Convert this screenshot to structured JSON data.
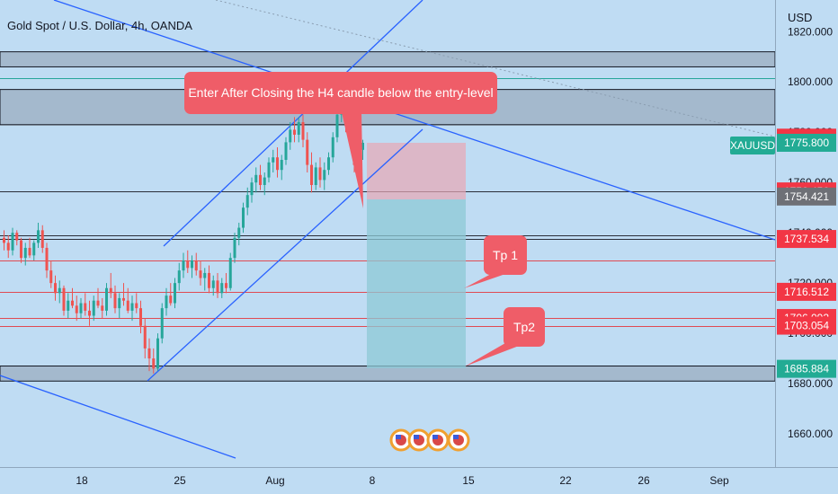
{
  "header": {
    "title": "Gold Spot / U.S. Dollar, 4h, OANDA",
    "currency": "USD",
    "symbol": "XAUUSD"
  },
  "annotations": {
    "entry_note": "Enter After Closing the H4 candle below the entry-level",
    "tp1": "Tp 1",
    "tp2": "Tp2"
  },
  "colors": {
    "background": "#bfdcf3",
    "candle_up": "#26a69a",
    "candle_down": "#ef5350",
    "callout": "#ef5d68",
    "price_red": "#f23645",
    "price_green": "#22ab94",
    "price_gray": "#6e7076",
    "trend_line": "#2962ff"
  },
  "price_axis": {
    "ticks": [
      {
        "value": 1820,
        "label": "1820.000"
      },
      {
        "value": 1800,
        "label": "1800.000"
      },
      {
        "value": 1780,
        "label": "1780.000"
      },
      {
        "value": 1760,
        "label": "1760.000"
      },
      {
        "value": 1740,
        "label": "1740.000"
      },
      {
        "value": 1720,
        "label": "1720.000"
      },
      {
        "value": 1700,
        "label": "1700.000"
      },
      {
        "value": 1680,
        "label": "1680.000"
      },
      {
        "value": 1660,
        "label": "1660.000"
      }
    ],
    "price_labels": [
      {
        "value": 1777.838,
        "label": "1777.838",
        "color": "red"
      },
      {
        "value": 1775.8,
        "label": "1775.800",
        "color": "green"
      },
      {
        "value": 1756.456,
        "label": "1756.456",
        "color": "red"
      },
      {
        "value": 1754.421,
        "label": "1754.421",
        "color": "gray"
      },
      {
        "value": 1737.534,
        "label": "1737.534",
        "color": "red"
      },
      {
        "value": 1716.512,
        "label": "1716.512",
        "color": "red"
      },
      {
        "value": 1706.092,
        "label": "1706.092",
        "color": "red"
      },
      {
        "value": 1703.054,
        "label": "1703.054",
        "color": "red"
      },
      {
        "value": 1685.884,
        "label": "1685.884",
        "color": "green"
      }
    ]
  },
  "time_axis": {
    "labels": [
      "18",
      "25",
      "Aug",
      "8",
      "15",
      "22",
      "26",
      "Sep"
    ]
  },
  "zones": [
    {
      "top": 1812,
      "bottom": 1806
    },
    {
      "top": 1797,
      "bottom": 1783
    },
    {
      "top": 1687,
      "bottom": 1681
    }
  ],
  "horizontal_levels": [
    {
      "value": 1783,
      "style": "gray"
    },
    {
      "value": 1756.456,
      "style": "dark"
    },
    {
      "value": 1739,
      "style": "dark"
    },
    {
      "value": 1737.5,
      "style": "dark"
    },
    {
      "value": 1729,
      "style": "red"
    },
    {
      "value": 1716.512,
      "style": "red"
    },
    {
      "value": 1706.092,
      "style": "red"
    },
    {
      "value": 1703.054,
      "style": "red"
    },
    {
      "value": 1801.5,
      "style": "teal"
    }
  ],
  "chart_data": {
    "type": "candlestick",
    "ylim": [
      1646.8,
      1832.6
    ],
    "candles": [
      [
        1738,
        1741,
        1733,
        1736
      ],
      [
        1736,
        1739,
        1730,
        1733
      ],
      [
        1733,
        1742,
        1731,
        1740
      ],
      [
        1740,
        1741,
        1735,
        1737
      ],
      [
        1737,
        1738,
        1728,
        1730
      ],
      [
        1730,
        1736,
        1727,
        1734
      ],
      [
        1734,
        1738,
        1730,
        1731
      ],
      [
        1731,
        1737,
        1729,
        1736
      ],
      [
        1736,
        1744,
        1734,
        1741
      ],
      [
        1741,
        1743,
        1732,
        1734
      ],
      [
        1734,
        1736,
        1722,
        1725
      ],
      [
        1725,
        1729,
        1718,
        1720
      ],
      [
        1720,
        1723,
        1713,
        1716
      ],
      [
        1716,
        1721,
        1712,
        1718
      ],
      [
        1718,
        1719,
        1707,
        1709
      ],
      [
        1709,
        1716,
        1706,
        1713
      ],
      [
        1713,
        1718,
        1710,
        1711
      ],
      [
        1711,
        1715,
        1705,
        1708
      ],
      [
        1708,
        1714,
        1706,
        1712
      ],
      [
        1712,
        1716,
        1707,
        1709
      ],
      [
        1709,
        1713,
        1703,
        1707
      ],
      [
        1707,
        1715,
        1705,
        1713
      ],
      [
        1713,
        1718,
        1710,
        1711
      ],
      [
        1711,
        1714,
        1706,
        1709
      ],
      [
        1709,
        1720,
        1707,
        1718
      ],
      [
        1718,
        1724,
        1714,
        1716
      ],
      [
        1716,
        1719,
        1708,
        1710
      ],
      [
        1710,
        1716,
        1706,
        1714
      ],
      [
        1714,
        1720,
        1711,
        1713
      ],
      [
        1713,
        1718,
        1708,
        1709
      ],
      [
        1709,
        1715,
        1705,
        1712
      ],
      [
        1712,
        1716,
        1708,
        1710
      ],
      [
        1710,
        1713,
        1700,
        1703
      ],
      [
        1703,
        1706,
        1690,
        1694
      ],
      [
        1694,
        1698,
        1685,
        1690
      ],
      [
        1690,
        1694,
        1684,
        1686
      ],
      [
        1686,
        1700,
        1685,
        1698
      ],
      [
        1698,
        1712,
        1696,
        1710
      ],
      [
        1710,
        1718,
        1707,
        1715
      ],
      [
        1715,
        1720,
        1711,
        1712
      ],
      [
        1712,
        1722,
        1710,
        1720
      ],
      [
        1720,
        1728,
        1717,
        1725
      ],
      [
        1725,
        1732,
        1722,
        1729
      ],
      [
        1729,
        1733,
        1724,
        1726
      ],
      [
        1726,
        1731,
        1722,
        1729
      ],
      [
        1729,
        1732,
        1723,
        1725
      ],
      [
        1725,
        1729,
        1719,
        1722
      ],
      [
        1722,
        1726,
        1717,
        1724
      ],
      [
        1724,
        1727,
        1716,
        1718
      ],
      [
        1718,
        1723,
        1715,
        1721
      ],
      [
        1721,
        1724,
        1714,
        1716
      ],
      [
        1716,
        1722,
        1714,
        1720
      ],
      [
        1720,
        1724,
        1716,
        1718
      ],
      [
        1718,
        1732,
        1717,
        1730
      ],
      [
        1730,
        1740,
        1728,
        1738
      ],
      [
        1738,
        1744,
        1735,
        1742
      ],
      [
        1742,
        1752,
        1740,
        1750
      ],
      [
        1750,
        1758,
        1747,
        1755
      ],
      [
        1755,
        1762,
        1752,
        1760
      ],
      [
        1760,
        1766,
        1756,
        1763
      ],
      [
        1763,
        1767,
        1757,
        1759
      ],
      [
        1759,
        1764,
        1755,
        1762
      ],
      [
        1762,
        1770,
        1760,
        1768
      ],
      [
        1768,
        1773,
        1764,
        1770
      ],
      [
        1770,
        1774,
        1762,
        1765
      ],
      [
        1765,
        1771,
        1761,
        1769
      ],
      [
        1769,
        1778,
        1767,
        1776
      ],
      [
        1776,
        1784,
        1773,
        1781
      ],
      [
        1781,
        1786,
        1776,
        1779
      ],
      [
        1779,
        1786,
        1776,
        1784
      ],
      [
        1784,
        1787,
        1774,
        1777
      ],
      [
        1777,
        1780,
        1764,
        1767
      ],
      [
        1767,
        1772,
        1756,
        1759
      ],
      [
        1759,
        1768,
        1757,
        1766
      ],
      [
        1766,
        1770,
        1758,
        1761
      ],
      [
        1761,
        1768,
        1757,
        1765
      ],
      [
        1765,
        1772,
        1763,
        1770
      ],
      [
        1770,
        1780,
        1768,
        1778
      ],
      [
        1778,
        1790,
        1776,
        1787
      ],
      [
        1787,
        1797,
        1784,
        1793
      ],
      [
        1793,
        1794,
        1780,
        1783
      ],
      [
        1783,
        1789,
        1779,
        1786
      ],
      [
        1786,
        1789,
        1764,
        1767
      ],
      [
        1767,
        1775,
        1765,
        1773
      ],
      [
        1773,
        1777,
        1769,
        1775.8
      ]
    ]
  }
}
